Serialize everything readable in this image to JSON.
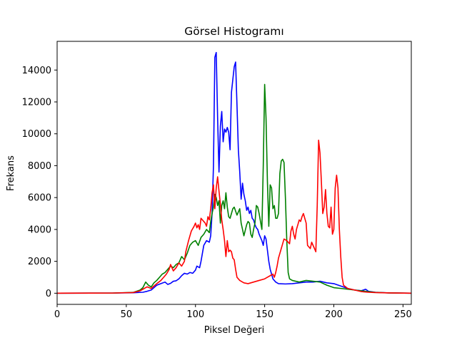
{
  "chart_data": {
    "type": "line",
    "title": "Görsel Histogramı",
    "xlabel": "Piksel Değeri",
    "ylabel": "Frekans",
    "xlim": [
      0,
      256
    ],
    "ylim": [
      -700,
      15800
    ],
    "xticks": [
      0,
      50,
      100,
      150,
      200,
      250
    ],
    "yticks": [
      0,
      2000,
      4000,
      6000,
      8000,
      10000,
      12000,
      14000
    ],
    "grid": false,
    "legend": "none",
    "series": [
      {
        "color": "#0000ff",
        "points": [
          [
            0,
            0
          ],
          [
            40,
            10
          ],
          [
            55,
            30
          ],
          [
            62,
            60
          ],
          [
            65,
            120
          ],
          [
            68,
            200
          ],
          [
            70,
            350
          ],
          [
            72,
            500
          ],
          [
            75,
            600
          ],
          [
            78,
            700
          ],
          [
            80,
            550
          ],
          [
            82,
            620
          ],
          [
            84,
            750
          ],
          [
            86,
            780
          ],
          [
            88,
            900
          ],
          [
            90,
            1100
          ],
          [
            92,
            1250
          ],
          [
            94,
            1200
          ],
          [
            96,
            1300
          ],
          [
            98,
            1250
          ],
          [
            100,
            1450
          ],
          [
            101,
            1700
          ],
          [
            103,
            1600
          ],
          [
            104,
            2000
          ],
          [
            105,
            2500
          ],
          [
            106,
            3000
          ],
          [
            108,
            3300
          ],
          [
            110,
            3200
          ],
          [
            111,
            3600
          ],
          [
            112,
            5000
          ],
          [
            113,
            8000
          ],
          [
            114,
            14800
          ],
          [
            115,
            15100
          ],
          [
            116,
            11000
          ],
          [
            117,
            7600
          ],
          [
            118,
            10500
          ],
          [
            119,
            11400
          ],
          [
            120,
            9500
          ],
          [
            121,
            10300
          ],
          [
            122,
            10100
          ],
          [
            123,
            10400
          ],
          [
            124,
            10100
          ],
          [
            125,
            9000
          ],
          [
            126,
            12600
          ],
          [
            127,
            13400
          ],
          [
            128,
            14200
          ],
          [
            129,
            14500
          ],
          [
            130,
            11800
          ],
          [
            131,
            9000
          ],
          [
            132,
            7600
          ],
          [
            133,
            5900
          ],
          [
            134,
            6900
          ],
          [
            135,
            6200
          ],
          [
            136,
            5800
          ],
          [
            137,
            5200
          ],
          [
            138,
            5400
          ],
          [
            139,
            5000
          ],
          [
            140,
            5200
          ],
          [
            141,
            4700
          ],
          [
            142,
            4600
          ],
          [
            143,
            4300
          ],
          [
            144,
            4100
          ],
          [
            145,
            4000
          ],
          [
            146,
            3700
          ],
          [
            147,
            3500
          ],
          [
            148,
            3300
          ],
          [
            149,
            3000
          ],
          [
            150,
            3600
          ],
          [
            151,
            3400
          ],
          [
            152,
            2700
          ],
          [
            153,
            2000
          ],
          [
            154,
            1500
          ],
          [
            155,
            1200
          ],
          [
            156,
            900
          ],
          [
            158,
            700
          ],
          [
            160,
            600
          ],
          [
            165,
            580
          ],
          [
            170,
            600
          ],
          [
            175,
            650
          ],
          [
            180,
            700
          ],
          [
            185,
            700
          ],
          [
            190,
            750
          ],
          [
            195,
            650
          ],
          [
            200,
            600
          ],
          [
            205,
            450
          ],
          [
            210,
            300
          ],
          [
            215,
            200
          ],
          [
            220,
            160
          ],
          [
            223,
            250
          ],
          [
            225,
            120
          ],
          [
            230,
            60
          ],
          [
            240,
            20
          ],
          [
            256,
            0
          ]
        ]
      },
      {
        "color": "#008000",
        "points": [
          [
            0,
            0
          ],
          [
            40,
            10
          ],
          [
            55,
            50
          ],
          [
            60,
            200
          ],
          [
            62,
            350
          ],
          [
            64,
            700
          ],
          [
            66,
            500
          ],
          [
            68,
            400
          ],
          [
            70,
            650
          ],
          [
            72,
            800
          ],
          [
            74,
            1000
          ],
          [
            76,
            1200
          ],
          [
            78,
            1300
          ],
          [
            80,
            1500
          ],
          [
            82,
            1700
          ],
          [
            84,
            1600
          ],
          [
            86,
            1800
          ],
          [
            88,
            1900
          ],
          [
            90,
            2300
          ],
          [
            92,
            2100
          ],
          [
            94,
            2500
          ],
          [
            96,
            3000
          ],
          [
            98,
            3200
          ],
          [
            100,
            3300
          ],
          [
            102,
            3000
          ],
          [
            104,
            3500
          ],
          [
            106,
            3700
          ],
          [
            108,
            4000
          ],
          [
            110,
            3800
          ],
          [
            111,
            4500
          ],
          [
            112,
            5000
          ],
          [
            113,
            5400
          ],
          [
            114,
            6200
          ],
          [
            115,
            6000
          ],
          [
            116,
            5500
          ],
          [
            117,
            5800
          ],
          [
            118,
            4400
          ],
          [
            119,
            5500
          ],
          [
            120,
            5800
          ],
          [
            121,
            5300
          ],
          [
            122,
            6300
          ],
          [
            123,
            5400
          ],
          [
            124,
            4800
          ],
          [
            125,
            4700
          ],
          [
            126,
            5000
          ],
          [
            127,
            5300
          ],
          [
            128,
            5400
          ],
          [
            130,
            4900
          ],
          [
            132,
            5300
          ],
          [
            133,
            4400
          ],
          [
            134,
            4000
          ],
          [
            135,
            3600
          ],
          [
            137,
            4300
          ],
          [
            138,
            4500
          ],
          [
            139,
            4400
          ],
          [
            140,
            3700
          ],
          [
            141,
            3500
          ],
          [
            142,
            4000
          ],
          [
            143,
            4400
          ],
          [
            144,
            5500
          ],
          [
            145,
            5400
          ],
          [
            146,
            5000
          ],
          [
            147,
            4500
          ],
          [
            148,
            4000
          ],
          [
            149,
            8000
          ],
          [
            150,
            13100
          ],
          [
            151,
            11000
          ],
          [
            152,
            7000
          ],
          [
            153,
            4200
          ],
          [
            154,
            6800
          ],
          [
            155,
            6600
          ],
          [
            156,
            5300
          ],
          [
            157,
            5500
          ],
          [
            158,
            4700
          ],
          [
            159,
            4700
          ],
          [
            160,
            5000
          ],
          [
            161,
            7500
          ],
          [
            162,
            8300
          ],
          [
            163,
            8400
          ],
          [
            164,
            8200
          ],
          [
            165,
            6000
          ],
          [
            166,
            3300
          ],
          [
            167,
            1300
          ],
          [
            168,
            900
          ],
          [
            170,
            800
          ],
          [
            175,
            700
          ],
          [
            180,
            800
          ],
          [
            185,
            750
          ],
          [
            190,
            700
          ],
          [
            195,
            500
          ],
          [
            200,
            350
          ],
          [
            205,
            300
          ],
          [
            210,
            250
          ],
          [
            215,
            200
          ],
          [
            220,
            150
          ],
          [
            225,
            100
          ],
          [
            230,
            50
          ],
          [
            240,
            20
          ],
          [
            256,
            0
          ]
        ]
      },
      {
        "color": "#ff0000",
        "points": [
          [
            0,
            0
          ],
          [
            40,
            10
          ],
          [
            55,
            40
          ],
          [
            60,
            150
          ],
          [
            62,
            250
          ],
          [
            65,
            400
          ],
          [
            68,
            300
          ],
          [
            70,
            450
          ],
          [
            72,
            600
          ],
          [
            75,
            800
          ],
          [
            77,
            1000
          ],
          [
            79,
            1200
          ],
          [
            81,
            1500
          ],
          [
            82,
            1800
          ],
          [
            84,
            1400
          ],
          [
            86,
            1600
          ],
          [
            88,
            1900
          ],
          [
            90,
            1700
          ],
          [
            92,
            2000
          ],
          [
            93,
            2600
          ],
          [
            95,
            3300
          ],
          [
            97,
            3900
          ],
          [
            99,
            4200
          ],
          [
            100,
            4400
          ],
          [
            101,
            4100
          ],
          [
            102,
            4300
          ],
          [
            103,
            4000
          ],
          [
            104,
            4700
          ],
          [
            105,
            4600
          ],
          [
            106,
            4500
          ],
          [
            107,
            4400
          ],
          [
            108,
            4200
          ],
          [
            109,
            4800
          ],
          [
            110,
            4600
          ],
          [
            111,
            5300
          ],
          [
            112,
            6300
          ],
          [
            113,
            6800
          ],
          [
            114,
            5300
          ],
          [
            115,
            6600
          ],
          [
            116,
            7300
          ],
          [
            117,
            6400
          ],
          [
            118,
            5600
          ],
          [
            119,
            4600
          ],
          [
            120,
            4000
          ],
          [
            121,
            3300
          ],
          [
            122,
            2300
          ],
          [
            123,
            3300
          ],
          [
            124,
            2600
          ],
          [
            125,
            2700
          ],
          [
            126,
            2600
          ],
          [
            127,
            2200
          ],
          [
            128,
            2100
          ],
          [
            129,
            1500
          ],
          [
            130,
            1000
          ],
          [
            132,
            800
          ],
          [
            135,
            650
          ],
          [
            138,
            600
          ],
          [
            142,
            700
          ],
          [
            146,
            800
          ],
          [
            150,
            900
          ],
          [
            152,
            1000
          ],
          [
            154,
            1100
          ],
          [
            156,
            1200
          ],
          [
            157,
            1000
          ],
          [
            158,
            1300
          ],
          [
            159,
            1700
          ],
          [
            160,
            2200
          ],
          [
            162,
            2800
          ],
          [
            164,
            3400
          ],
          [
            166,
            3300
          ],
          [
            168,
            3100
          ],
          [
            169,
            3900
          ],
          [
            170,
            4200
          ],
          [
            171,
            3700
          ],
          [
            172,
            3400
          ],
          [
            173,
            4000
          ],
          [
            174,
            4300
          ],
          [
            175,
            4600
          ],
          [
            176,
            4500
          ],
          [
            177,
            4800
          ],
          [
            178,
            5000
          ],
          [
            179,
            4700
          ],
          [
            180,
            4400
          ],
          [
            181,
            3000
          ],
          [
            182,
            2900
          ],
          [
            183,
            2800
          ],
          [
            184,
            3200
          ],
          [
            185,
            3000
          ],
          [
            186,
            2800
          ],
          [
            187,
            2600
          ],
          [
            188,
            5500
          ],
          [
            189,
            9600
          ],
          [
            190,
            8800
          ],
          [
            191,
            7000
          ],
          [
            192,
            5000
          ],
          [
            193,
            5400
          ],
          [
            194,
            6500
          ],
          [
            195,
            5000
          ],
          [
            196,
            4200
          ],
          [
            197,
            4100
          ],
          [
            198,
            5400
          ],
          [
            199,
            3700
          ],
          [
            200,
            4000
          ],
          [
            201,
            6600
          ],
          [
            202,
            7400
          ],
          [
            203,
            6600
          ],
          [
            204,
            4000
          ],
          [
            205,
            2300
          ],
          [
            206,
            1000
          ],
          [
            207,
            500
          ],
          [
            210,
            300
          ],
          [
            215,
            200
          ],
          [
            220,
            100
          ],
          [
            225,
            60
          ],
          [
            230,
            40
          ],
          [
            240,
            20
          ],
          [
            256,
            0
          ]
        ]
      }
    ]
  }
}
